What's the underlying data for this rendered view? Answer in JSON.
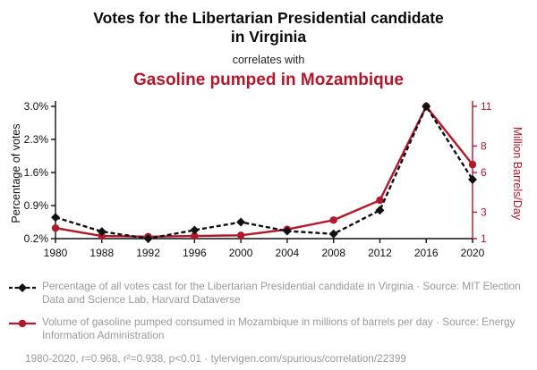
{
  "header": {
    "title": "Votes for the Libertarian Presidential candidate in Virginia",
    "connector": "correlates with",
    "subtitle": "Gasoline pumped in Mozambique"
  },
  "colors": {
    "accent_red": "#b2182b",
    "ink": "#111111",
    "legend_gray": "#9a9a9a"
  },
  "chart_data": {
    "type": "line",
    "x": [
      1980,
      1988,
      1992,
      1996,
      2000,
      2004,
      2008,
      2012,
      2016,
      2020
    ],
    "series": [
      {
        "name": "Percentage of all votes cast for the Libertarian Presidential candidate in Virginia",
        "axis": "left",
        "color": "#111111",
        "style": "dashed",
        "marker": "diamond",
        "values": [
          0.65,
          0.35,
          0.2,
          0.38,
          0.55,
          0.36,
          0.3,
          0.8,
          3.0,
          1.45
        ]
      },
      {
        "name": "Volume of gasoline pumped consumed in Mozambique",
        "axis": "right",
        "color": "#b2182b",
        "style": "solid",
        "marker": "circle",
        "values": [
          1.8,
          1.2,
          1.15,
          1.2,
          1.25,
          1.7,
          2.4,
          3.9,
          11,
          6.6
        ]
      }
    ],
    "left_axis": {
      "label": "Percentage of votes",
      "ticks": [
        0.2,
        0.9,
        1.6,
        2.3,
        3.0
      ],
      "tick_format": "percent",
      "min": 0.2,
      "max": 3.0
    },
    "right_axis": {
      "label": "Million Barrels/Day",
      "ticks": [
        1,
        3,
        6,
        8,
        11
      ],
      "min": 1,
      "max": 11
    },
    "grid": false,
    "legend_position": "bottom"
  },
  "legend": {
    "items": [
      {
        "label": "Percentage of all votes cast for the Libertarian Presidential candidate in Virginia · Source: MIT Election Data and Science Lab, Harvard Dataverse"
      },
      {
        "label": "Volume of gasoline pumped consumed in Mozambique in millions of barrels per day · Source: Energy Information Administration"
      }
    ]
  },
  "footer": {
    "text": "1980-2020, r=0.968, r²=0.938, p<0.01 · tylervigen.com/spurious/correlation/22399"
  }
}
